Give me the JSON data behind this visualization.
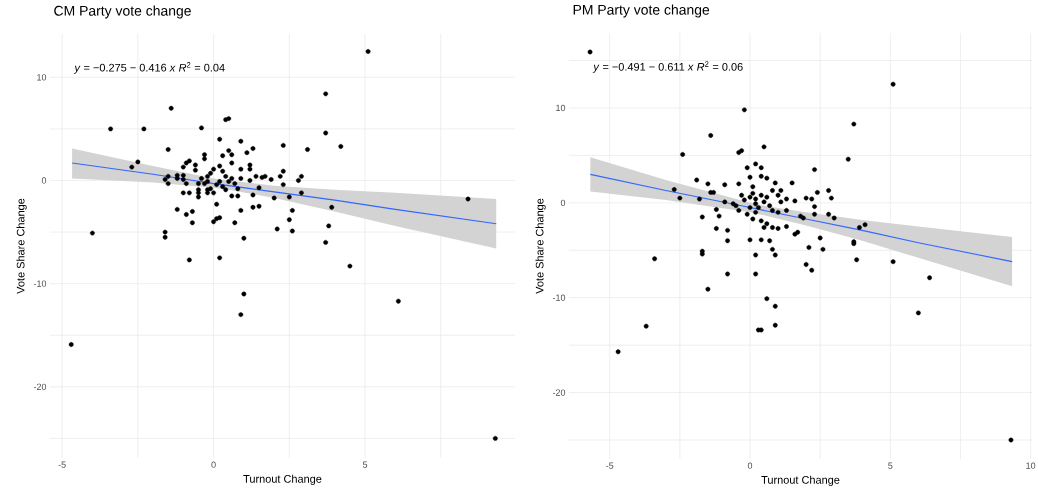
{
  "chart_data": [
    {
      "type": "scatter",
      "title": "CM Party vote change",
      "xlabel": "Turnout Change",
      "ylabel": "Vote Share Change",
      "annotations": [
        "*y* = −0.275 − 0.416 *x*    *R*$^{2}$ = 0.04"
      ],
      "xlim": [
        -5.4,
        9.95
      ],
      "ylim": [
        -26.9,
        14.2
      ],
      "xticks": [
        -5,
        {
          "value": -2.5,
          "label": null
        },
        0,
        {
          "value": 2.5,
          "label": null
        },
        5,
        {
          "value": 7.5,
          "label": null
        }
      ],
      "yticks": [
        -20,
        {
          "value": -25,
          "label": null
        },
        {
          "value": -15,
          "label": null
        },
        -10,
        {
          "value": -5,
          "label": null
        },
        0,
        {
          "value": 5,
          "label": null
        },
        10
      ],
      "grid": true,
      "series": [
        {
          "color": "#000000",
          "marker": "circle",
          "x": [
            5.1,
            3.7,
            3.7,
            4.2,
            3.1,
            2.3,
            -1.4,
            -3.4,
            -2.3,
            -0.4,
            0.4,
            0.5,
            0.2,
            0.9,
            1.3,
            1.1,
            -1.5,
            -2.5,
            -2.7,
            -4.0,
            -1.6,
            -1.6,
            8.4,
            3.9,
            3.8,
            3.7,
            2.6,
            2.1,
            2.5,
            2.6,
            2.5,
            2.9,
            2.9,
            2.8,
            2.3,
            2.3,
            2.2,
            2.0,
            1.9,
            1.7,
            1.6,
            1.4,
            1.2,
            1.5,
            1.3,
            1.5,
            1.3,
            0.9,
            0.7,
            0.2,
            0.1,
            0.0,
            0.1,
            0.8,
            0.6,
            1.2,
            1.2,
            0.9,
            0.6,
            0.6,
            0.5,
            0.3,
            -0.3,
            -0.3,
            -0.8,
            -1.0,
            -0.9,
            -0.6,
            -0.6,
            -1.0,
            -1.2,
            -1.5,
            -1.6,
            -1.5,
            -1.2,
            -1.0,
            -0.9,
            -0.4,
            -0.5,
            -0.5,
            -1.0,
            -0.8,
            -0.5,
            -0.5,
            -1.2,
            -0.7,
            -0.9,
            -0.7,
            -0.2,
            0.0,
            -0.2,
            -0.2,
            -0.2,
            -0.1,
            0.0,
            0.2,
            0.3,
            0.4,
            0.2,
            0.1,
            0.3,
            0.5,
            0.6,
            0.7,
            0.4,
            -0.1,
            -0.3,
            0.9,
            0.8,
            1.0,
            -0.8,
            0.2,
            4.5,
            1.0,
            0.9,
            6.1,
            -4.7,
            9.3
          ],
          "values": [
            12.5,
            8.4,
            4.6,
            3.3,
            3.0,
            3.4,
            7.0,
            5.0,
            5.0,
            5.1,
            5.9,
            6.0,
            4.0,
            3.8,
            3.1,
            2.7,
            3.0,
            1.8,
            1.3,
            -5.1,
            -5.0,
            -5.5,
            -1.8,
            -2.6,
            -4.4,
            -6.0,
            -4.9,
            -4.7,
            -3.8,
            -2.9,
            -1.6,
            -1.2,
            0.4,
            0.0,
            -0.4,
            0.9,
            0.4,
            -1.7,
            0.1,
            0.4,
            0.3,
            0.4,
            0.0,
            -0.7,
            -1.4,
            -2.5,
            -2.6,
            -2.9,
            -4.1,
            -3.6,
            -3.7,
            -4.0,
            -2.3,
            -1.5,
            -1.5,
            1.5,
            1.1,
            1.1,
            1.7,
            2.5,
            2.9,
            2.4,
            2.5,
            2.1,
            1.9,
            1.3,
            1.7,
            1.5,
            1.0,
            0.5,
            0.5,
            0.4,
            0.1,
            -0.3,
            0.2,
            0.1,
            -0.3,
            0.2,
            -0.3,
            -0.9,
            -1.2,
            -1.2,
            -1.6,
            -1.2,
            -2.8,
            -3.0,
            -3.3,
            -4.1,
            -1.2,
            -1.2,
            -0.9,
            -0.1,
            0.4,
            0.7,
            1.1,
            1.4,
            0.9,
            0.4,
            -0.1,
            -0.4,
            -0.6,
            -0.1,
            0.2,
            -0.3,
            -0.9,
            -0.8,
            -0.3,
            0.2,
            -0.8,
            -5.6,
            -7.7,
            -7.5,
            -8.3,
            -11.0,
            -13.0,
            -11.7,
            -15.9,
            -25.0
          ]
        },
        {
          "type": "line",
          "color": "#3366ff",
          "marker": "none",
          "line_style": "solid",
          "x": [
            -4.67,
            -2,
            0,
            0.5,
            2,
            4,
            6,
            9.33
          ],
          "values": [
            1.7,
            0.6,
            -0.3,
            -0.5,
            -1.1,
            -1.9,
            -2.8,
            -4.2
          ],
          "lower": [
            0.2,
            -0.2,
            -0.7,
            -0.9,
            -1.7,
            -3.0,
            -4.4,
            -6.6
          ],
          "upper": [
            3.1,
            1.4,
            0.2,
            0.0,
            -0.5,
            -0.9,
            -1.2,
            -1.8
          ]
        }
      ]
    },
    {
      "type": "scatter",
      "title": "PM Party vote change",
      "xlabel": "Turnout Change",
      "ylabel": "Vote Share Change",
      "annotations": [
        "*y* = −0.491 − 0.611 *x*    *R*$^{2}$ = 0.06"
      ],
      "xlim": [
        -6.45,
        10.05
      ],
      "ylim": [
        -27.0,
        17.9
      ],
      "xticks": [
        -5,
        {
          "value": -2.5,
          "label": null
        },
        0,
        {
          "value": 2.5,
          "label": null
        },
        5,
        {
          "value": 7.5,
          "label": null
        },
        10
      ],
      "yticks": [
        -20,
        {
          "value": -25,
          "label": null
        },
        {
          "value": -15,
          "label": null
        },
        -10,
        {
          "value": -5,
          "label": null
        },
        0,
        {
          "value": 5,
          "label": null
        },
        10,
        {
          "value": 15,
          "label": null
        }
      ],
      "grid": true,
      "series": [
        {
          "color": "#000000",
          "marker": "circle",
          "x": [
            -5.7,
            5.1,
            -0.2,
            3.7,
            -1.4,
            -2.4,
            -0.4,
            -0.3,
            0.5,
            3.5,
            2.3,
            0.2,
            -0.1,
            0.4,
            0.4,
            0.6,
            0.9,
            1.5,
            1.1,
            0.0,
            -0.4,
            -1.5,
            -1.9,
            -0.9,
            -2.7,
            -2.5,
            -1.4,
            -1.3,
            -1.8,
            -1.7,
            -1.2,
            -1.1,
            -1.2,
            -0.8,
            -0.8,
            -0.9,
            -0.6,
            2.4,
            2.8,
            2.9,
            2.0,
            2.2,
            2.3,
            2.3,
            1.8,
            1.9,
            2.8,
            3.0,
            3.9,
            4.1,
            3.7,
            2.5,
            1.6,
            1.7,
            1.3,
            1.0,
            0.8,
            1.6,
            1.3,
            1.1,
            1.0,
            0.8,
            1.3,
            1.0,
            0.6,
            0.5,
            0.4,
            0.1,
            -0.1,
            -0.4,
            -0.5,
            0.0,
            0.1,
            0.2,
            0.4,
            0.2,
            0.3,
            0.5,
            0.7,
            0.0,
            -0.2,
            -0.3,
            0.1,
            0.6,
            0.8,
            0.2,
            0.0,
            0.4,
            0.7,
            0.8,
            0.2,
            0.9,
            2.1,
            2.6,
            3.7,
            3.8,
            5.1,
            2.0,
            2.2,
            -1.7,
            -1.7,
            -3.4,
            -0.8,
            0.2,
            -1.5,
            6.4,
            0.6,
            0.9,
            6.0,
            -3.7,
            0.3,
            0.4,
            0.9,
            -4.7,
            9.3
          ],
          "values": [
            15.9,
            12.5,
            9.8,
            8.3,
            7.1,
            5.1,
            5.3,
            5.5,
            5.9,
            4.6,
            3.5,
            4.1,
            3.7,
            3.7,
            2.8,
            2.6,
            2.1,
            2.1,
            1.3,
            2.7,
            2.0,
            2.0,
            2.4,
            1.9,
            1.4,
            0.5,
            1.1,
            1.1,
            0.4,
            -1.5,
            -0.7,
            -1.4,
            -2.7,
            -2.9,
            -4.0,
            0.1,
            -0.1,
            1.1,
            1.3,
            0.5,
            0.5,
            0.4,
            -0.4,
            -1.2,
            -1.4,
            -1.6,
            -1.2,
            -1.6,
            -2.6,
            -2.3,
            -4.1,
            -3.7,
            -3.3,
            -3.1,
            -2.5,
            -2.7,
            -2.6,
            0.2,
            0.4,
            0.1,
            0.8,
            1.3,
            -0.8,
            -1.0,
            -2.2,
            -2.6,
            -1.9,
            -1.7,
            -1.2,
            -0.8,
            -0.3,
            0.6,
            1.0,
            0.4,
            0.8,
            -0.1,
            -0.5,
            0.1,
            -0.3,
            -0.5,
            0.3,
            0.8,
            1.7,
            0.6,
            -0.8,
            -1.0,
            -3.9,
            -3.9,
            -4.0,
            -4.9,
            -5.5,
            -5.5,
            -4.7,
            -4.9,
            -4.3,
            -6.0,
            -6.2,
            -6.5,
            -7.1,
            -5.4,
            -5.1,
            -5.9,
            -7.5,
            -7.5,
            -9.1,
            -7.9,
            -10.1,
            -10.9,
            -11.6,
            -13.0,
            -13.4,
            -13.4,
            -12.9,
            -15.7,
            -25.0
          ]
        },
        {
          "type": "line",
          "color": "#3366ff",
          "marker": "none",
          "line_style": "solid",
          "x": [
            -5.69,
            -3,
            0,
            0.5,
            2,
            4,
            6,
            9.34
          ],
          "values": [
            3.0,
            1.3,
            -0.5,
            -0.8,
            -1.7,
            -2.9,
            -4.2,
            -6.2
          ],
          "lower": [
            1.2,
            0.3,
            -1.0,
            -1.3,
            -2.4,
            -4.0,
            -5.8,
            -8.8
          ],
          "upper": [
            4.8,
            2.4,
            0.0,
            -0.3,
            -1.0,
            -1.8,
            -2.5,
            -3.6
          ]
        }
      ]
    }
  ]
}
